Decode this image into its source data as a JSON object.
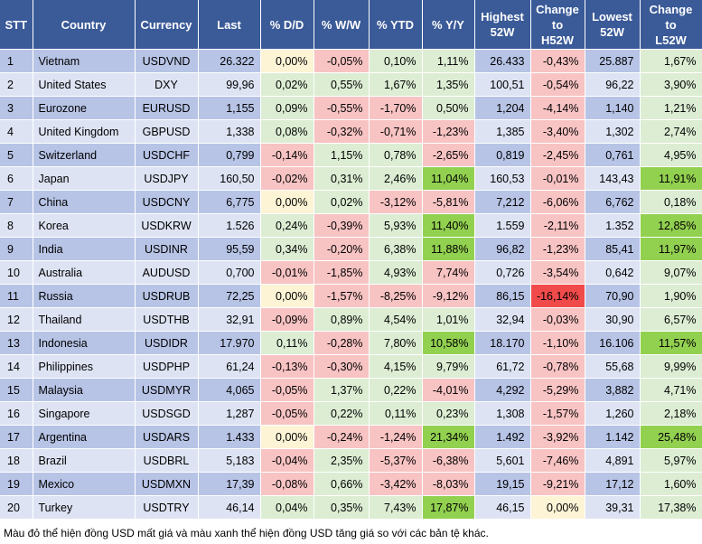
{
  "headers": {
    "stt": "STT",
    "country": "Country",
    "currency": "Currency",
    "last": "Last",
    "dd": "% D/D",
    "ww": "% W/W",
    "ytd": "% YTD",
    "yy": "% Y/Y",
    "high_l1": "Highest",
    "high_l2": "52W",
    "chh_l1": "Change",
    "chh_l2": "to",
    "chh_l3": "H52W",
    "low_l1": "Lowest",
    "low_l2": "52W",
    "chl_l1": "Change",
    "chl_l2": "to",
    "chl_l3": "L52W"
  },
  "rows": [
    {
      "stt": "1",
      "country": "Vietnam",
      "currency": "USDVND",
      "last": "26.322",
      "dd": "0,00%",
      "ww": "-0,05%",
      "ytd": "0,10%",
      "yy": "1,11%",
      "high": "26.433",
      "chh": "-0,43%",
      "low": "25.887",
      "chl": "1,67%"
    },
    {
      "stt": "2",
      "country": "United States",
      "currency": "DXY",
      "last": "99,96",
      "dd": "0,02%",
      "ww": "0,55%",
      "ytd": "1,67%",
      "yy": "1,35%",
      "high": "100,51",
      "chh": "-0,54%",
      "low": "96,22",
      "chl": "3,90%"
    },
    {
      "stt": "3",
      "country": "Eurozone",
      "currency": "EURUSD",
      "last": "1,155",
      "dd": "0,09%",
      "ww": "-0,55%",
      "ytd": "-1,70%",
      "yy": "0,50%",
      "high": "1,204",
      "chh": "-4,14%",
      "low": "1,140",
      "chl": "1,21%"
    },
    {
      "stt": "4",
      "country": "United Kingdom",
      "currency": "GBPUSD",
      "last": "1,338",
      "dd": "0,08%",
      "ww": "-0,32%",
      "ytd": "-0,71%",
      "yy": "-1,23%",
      "high": "1,385",
      "chh": "-3,40%",
      "low": "1,302",
      "chl": "2,74%"
    },
    {
      "stt": "5",
      "country": "Switzerland",
      "currency": "USDCHF",
      "last": "0,799",
      "dd": "-0,14%",
      "ww": "1,15%",
      "ytd": "0,78%",
      "yy": "-2,65%",
      "high": "0,819",
      "chh": "-2,45%",
      "low": "0,761",
      "chl": "4,95%"
    },
    {
      "stt": "6",
      "country": "Japan",
      "currency": "USDJPY",
      "last": "160,50",
      "dd": "-0,02%",
      "ww": "0,31%",
      "ytd": "2,46%",
      "yy": "11,04%",
      "high": "160,53",
      "chh": "-0,01%",
      "low": "143,43",
      "chl": "11,91%"
    },
    {
      "stt": "7",
      "country": "China",
      "currency": "USDCNY",
      "last": "6,775",
      "dd": "0,00%",
      "ww": "0,02%",
      "ytd": "-3,12%",
      "yy": "-5,81%",
      "high": "7,212",
      "chh": "-6,06%",
      "low": "6,762",
      "chl": "0,18%"
    },
    {
      "stt": "8",
      "country": "Korea",
      "currency": "USDKRW",
      "last": "1.526",
      "dd": "0,24%",
      "ww": "-0,39%",
      "ytd": "5,93%",
      "yy": "11,40%",
      "high": "1.559",
      "chh": "-2,11%",
      "low": "1.352",
      "chl": "12,85%"
    },
    {
      "stt": "9",
      "country": "India",
      "currency": "USDINR",
      "last": "95,59",
      "dd": "0,34%",
      "ww": "-0,20%",
      "ytd": "6,38%",
      "yy": "11,88%",
      "high": "96,82",
      "chh": "-1,23%",
      "low": "85,41",
      "chl": "11,97%"
    },
    {
      "stt": "10",
      "country": "Australia",
      "currency": "AUDUSD",
      "last": "0,700",
      "dd": "-0,01%",
      "ww": "-1,85%",
      "ytd": "4,93%",
      "yy": "7,74%",
      "high": "0,726",
      "chh": "-3,54%",
      "low": "0,642",
      "chl": "9,07%"
    },
    {
      "stt": "11",
      "country": "Russia",
      "currency": "USDRUB",
      "last": "72,25",
      "dd": "0,00%",
      "ww": "-1,57%",
      "ytd": "-8,25%",
      "yy": "-9,12%",
      "high": "86,15",
      "chh": "-16,14%",
      "low": "70,90",
      "chl": "1,90%"
    },
    {
      "stt": "12",
      "country": "Thailand",
      "currency": "USDTHB",
      "last": "32,91",
      "dd": "-0,09%",
      "ww": "0,89%",
      "ytd": "4,54%",
      "yy": "1,01%",
      "high": "32,94",
      "chh": "-0,03%",
      "low": "30,90",
      "chl": "6,57%"
    },
    {
      "stt": "13",
      "country": "Indonesia",
      "currency": "USDIDR",
      "last": "17.970",
      "dd": "0,11%",
      "ww": "-0,28%",
      "ytd": "7,80%",
      "yy": "10,58%",
      "high": "18.170",
      "chh": "-1,10%",
      "low": "16.106",
      "chl": "11,57%"
    },
    {
      "stt": "14",
      "country": "Philippines",
      "currency": "USDPHP",
      "last": "61,24",
      "dd": "-0,13%",
      "ww": "-0,30%",
      "ytd": "4,15%",
      "yy": "9,79%",
      "high": "61,72",
      "chh": "-0,78%",
      "low": "55,68",
      "chl": "9,99%"
    },
    {
      "stt": "15",
      "country": "Malaysia",
      "currency": "USDMYR",
      "last": "4,065",
      "dd": "-0,05%",
      "ww": "1,37%",
      "ytd": "0,22%",
      "yy": "-4,01%",
      "high": "4,292",
      "chh": "-5,29%",
      "low": "3,882",
      "chl": "4,71%"
    },
    {
      "stt": "16",
      "country": "Singapore",
      "currency": "USDSGD",
      "last": "1,287",
      "dd": "-0,05%",
      "ww": "0,22%",
      "ytd": "0,11%",
      "yy": "0,23%",
      "high": "1,308",
      "chh": "-1,57%",
      "low": "1,260",
      "chl": "2,18%"
    },
    {
      "stt": "17",
      "country": "Argentina",
      "currency": "USDARS",
      "last": "1.433",
      "dd": "0,00%",
      "ww": "-0,24%",
      "ytd": "-1,24%",
      "yy": "21,34%",
      "high": "1.492",
      "chh": "-3,92%",
      "low": "1.142",
      "chl": "25,48%"
    },
    {
      "stt": "18",
      "country": "Brazil",
      "currency": "USDBRL",
      "last": "5,183",
      "dd": "-0,04%",
      "ww": "2,35%",
      "ytd": "-5,37%",
      "yy": "-6,38%",
      "high": "5,601",
      "chh": "-7,46%",
      "low": "4,891",
      "chl": "5,97%"
    },
    {
      "stt": "19",
      "country": "Mexico",
      "currency": "USDMXN",
      "last": "17,39",
      "dd": "-0,08%",
      "ww": "0,66%",
      "ytd": "-3,42%",
      "yy": "-8,03%",
      "high": "19,15",
      "chh": "-9,21%",
      "low": "17,12",
      "chl": "1,60%"
    },
    {
      "stt": "20",
      "country": "Turkey",
      "currency": "USDTRY",
      "last": "46,14",
      "dd": "0,04%",
      "ww": "0,35%",
      "ytd": "7,43%",
      "yy": "17,87%",
      "high": "46,15",
      "chh": "0,00%",
      "low": "39,31",
      "chl": "17,38%"
    }
  ],
  "cell_classes": {
    "dd": [
      "zero",
      "pos",
      "pos",
      "pos",
      "neg",
      "neg",
      "zero",
      "pos",
      "pos",
      "neg",
      "zero",
      "neg",
      "pos",
      "neg",
      "neg",
      "neg",
      "zero",
      "neg",
      "neg",
      "pos"
    ],
    "ww": [
      "neg",
      "pos",
      "neg",
      "neg",
      "pos",
      "pos",
      "pos",
      "neg",
      "neg",
      "neg",
      "neg",
      "pos",
      "neg",
      "neg",
      "pos",
      "pos",
      "neg",
      "pos",
      "pos",
      "pos"
    ],
    "ytd": [
      "pos",
      "pos",
      "neg",
      "neg",
      "pos",
      "pos",
      "neg",
      "pos",
      "pos",
      "pos",
      "neg",
      "pos",
      "pos",
      "pos",
      "pos",
      "pos",
      "neg",
      "neg",
      "neg",
      "pos"
    ],
    "yy": [
      "pos",
      "pos",
      "pos",
      "neg",
      "neg",
      "strongpos",
      "neg",
      "strongpos",
      "strongpos",
      "neg",
      "neg",
      "pos",
      "strongpos",
      "pos",
      "neg",
      "pos",
      "strongpos",
      "neg",
      "neg",
      "strongpos"
    ],
    "chh": [
      "neg",
      "neg",
      "neg",
      "neg",
      "neg",
      "neg",
      "neg",
      "neg",
      "neg",
      "neg",
      "strongneg",
      "neg",
      "neg",
      "neg",
      "neg",
      "neg",
      "neg",
      "neg",
      "neg",
      "zero"
    ],
    "chl": [
      "pos",
      "pos",
      "pos",
      "pos",
      "pos",
      "strongpos",
      "pos",
      "strongpos",
      "strongpos",
      "pos",
      "pos",
      "pos",
      "strongpos",
      "pos",
      "pos",
      "pos",
      "strongpos",
      "pos",
      "pos",
      "pos"
    ]
  },
  "colors": {
    "header_bg": "#3a5a98",
    "row_odd": "#b7c4e6",
    "row_even": "#dde3f3",
    "pos": "#dcedd3",
    "neg": "#f8c3c3",
    "zero": "#fdf4d6",
    "strongpos": "#92d050",
    "strongneg": "#f14a4a"
  },
  "footnote": "Màu đỏ thể hiện đồng USD mất giá và màu xanh thể hiện đồng USD tăng giá so với các bản tệ khác."
}
